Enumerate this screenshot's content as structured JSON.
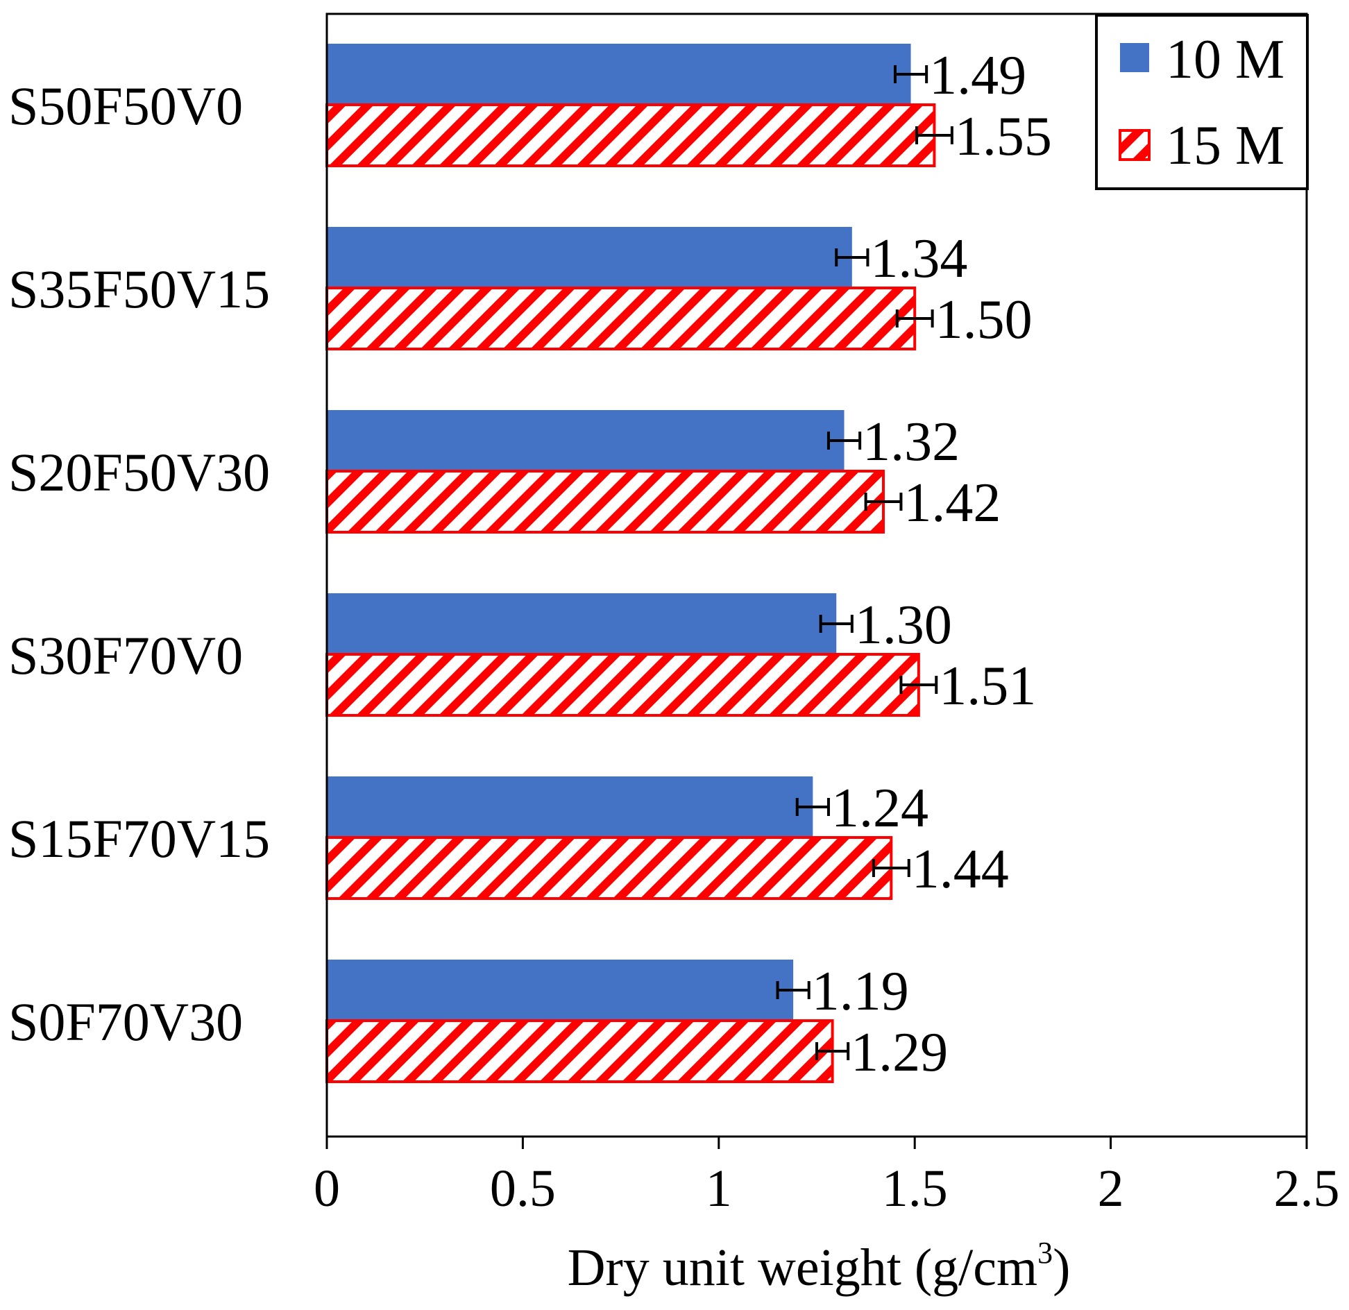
{
  "chart_data": {
    "type": "bar",
    "orientation": "horizontal",
    "categories": [
      "S50F50V0",
      "S35F50V15",
      "S20F50V30",
      "S30F70V0",
      "S15F70V15",
      "S0F70V30"
    ],
    "series": [
      {
        "name": "10 M",
        "color": "#4472C4",
        "style": "solid",
        "values": [
          1.49,
          1.34,
          1.32,
          1.3,
          1.24,
          1.19
        ],
        "labels": [
          "1.49",
          "1.34",
          "1.32",
          "1.30",
          "1.24",
          "1.19"
        ],
        "errors": [
          0.04,
          0.04,
          0.04,
          0.04,
          0.04,
          0.04
        ]
      },
      {
        "name": "15 M",
        "color": "#FF0000",
        "style": "hatched",
        "values": [
          1.55,
          1.5,
          1.42,
          1.51,
          1.44,
          1.29
        ],
        "labels": [
          "1.55",
          "1.50",
          "1.42",
          "1.51",
          "1.44",
          "1.29"
        ],
        "errors": [
          0.045,
          0.045,
          0.045,
          0.045,
          0.045,
          0.04
        ]
      }
    ],
    "xlim": [
      0,
      2.5
    ],
    "xticks": [
      0,
      0.5,
      1,
      1.5,
      2,
      2.5
    ],
    "xtick_labels": [
      "0",
      "0.5",
      "1",
      "1.5",
      "2",
      "2.5"
    ],
    "xlabel": "Dry unit weight (g/cm",
    "xlabel_superscript": "3",
    "xlabel_suffix": ")",
    "ylabel": "",
    "title": "",
    "grid": false,
    "legend_position": "top-right"
  }
}
